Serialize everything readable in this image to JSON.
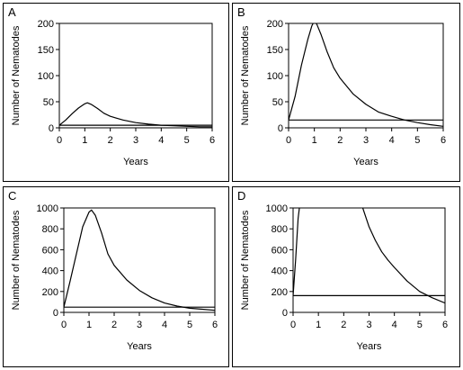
{
  "chart_data": [
    {
      "type": "line",
      "panel_label": "A",
      "xlabel": "Years",
      "ylabel": "Number of Nematodes",
      "xlim": [
        0,
        6
      ],
      "ylim": [
        0,
        200
      ],
      "xticks": [
        "0",
        "1",
        "2",
        "3",
        "4",
        "5",
        "6"
      ],
      "yticks": [
        "0",
        "50",
        "100",
        "150",
        "200"
      ],
      "series": [
        {
          "x": [
            0,
            0.25,
            0.5,
            0.75,
            1.0,
            1.1,
            1.25,
            1.5,
            1.75,
            2.0,
            2.5,
            3.0,
            3.5,
            4.0,
            4.5,
            5.0,
            5.5,
            6.0
          ],
          "values": [
            5,
            15,
            27,
            38,
            46,
            48,
            45,
            37,
            28,
            22,
            15,
            10,
            7,
            5,
            4,
            3,
            2,
            2
          ]
        },
        {
          "x": [
            0,
            6
          ],
          "values": [
            5,
            5
          ]
        }
      ]
    },
    {
      "type": "line",
      "panel_label": "B",
      "xlabel": "Years",
      "ylabel": "Number of Nematodes",
      "xlim": [
        0,
        6
      ],
      "ylim": [
        0,
        200
      ],
      "xticks": [
        "0",
        "1",
        "2",
        "3",
        "4",
        "5",
        "6"
      ],
      "yticks": [
        "0",
        "50",
        "100",
        "150",
        "200"
      ],
      "series": [
        {
          "x": [
            0,
            0.25,
            0.5,
            0.75,
            0.9,
            1.0,
            1.1,
            1.25,
            1.5,
            1.75,
            2.0,
            2.5,
            3.0,
            3.5,
            4.0,
            4.5,
            5.0,
            5.5,
            6.0
          ],
          "values": [
            15,
            60,
            120,
            170,
            195,
            205,
            198,
            180,
            145,
            115,
            95,
            65,
            45,
            30,
            22,
            15,
            10,
            6,
            3
          ]
        },
        {
          "x": [
            0,
            6
          ],
          "values": [
            15,
            15
          ]
        }
      ]
    },
    {
      "type": "line",
      "panel_label": "C",
      "xlabel": "Years",
      "ylabel": "Number of Nematodes",
      "xlim": [
        0,
        6
      ],
      "ylim": [
        0,
        1000
      ],
      "xticks": [
        "0",
        "1",
        "2",
        "3",
        "4",
        "5",
        "6"
      ],
      "yticks": [
        "0",
        "200",
        "400",
        "600",
        "800",
        "1000"
      ],
      "series": [
        {
          "x": [
            0,
            0.25,
            0.5,
            0.75,
            1.0,
            1.1,
            1.25,
            1.5,
            1.75,
            2.0,
            2.5,
            3.0,
            3.5,
            4.0,
            4.5,
            5.0,
            5.5,
            6.0
          ],
          "values": [
            50,
            300,
            560,
            820,
            960,
            980,
            930,
            760,
            560,
            450,
            310,
            210,
            140,
            90,
            60,
            40,
            30,
            20
          ]
        },
        {
          "x": [
            0,
            6
          ],
          "values": [
            50,
            50
          ]
        }
      ]
    },
    {
      "type": "line",
      "panel_label": "D",
      "xlabel": "Years",
      "ylabel": "Number of Nematodes",
      "xlim": [
        0,
        6
      ],
      "ylim": [
        0,
        1000
      ],
      "xticks": [
        "0",
        "1",
        "2",
        "3",
        "4",
        "5",
        "6"
      ],
      "yticks": [
        "0",
        "200",
        "400",
        "600",
        "800",
        "1000"
      ],
      "series": [
        {
          "x": [
            0,
            0.1,
            0.2,
            0.25
          ],
          "values": [
            160,
            500,
            900,
            1000
          ]
        },
        {
          "x": [
            2.75,
            3.0,
            3.25,
            3.5,
            3.75,
            4.0,
            4.5,
            5.0,
            5.5,
            6.0
          ],
          "values": [
            1000,
            820,
            690,
            580,
            500,
            430,
            300,
            200,
            140,
            90
          ]
        },
        {
          "x": [
            0,
            6
          ],
          "values": [
            160,
            160
          ]
        }
      ]
    }
  ]
}
